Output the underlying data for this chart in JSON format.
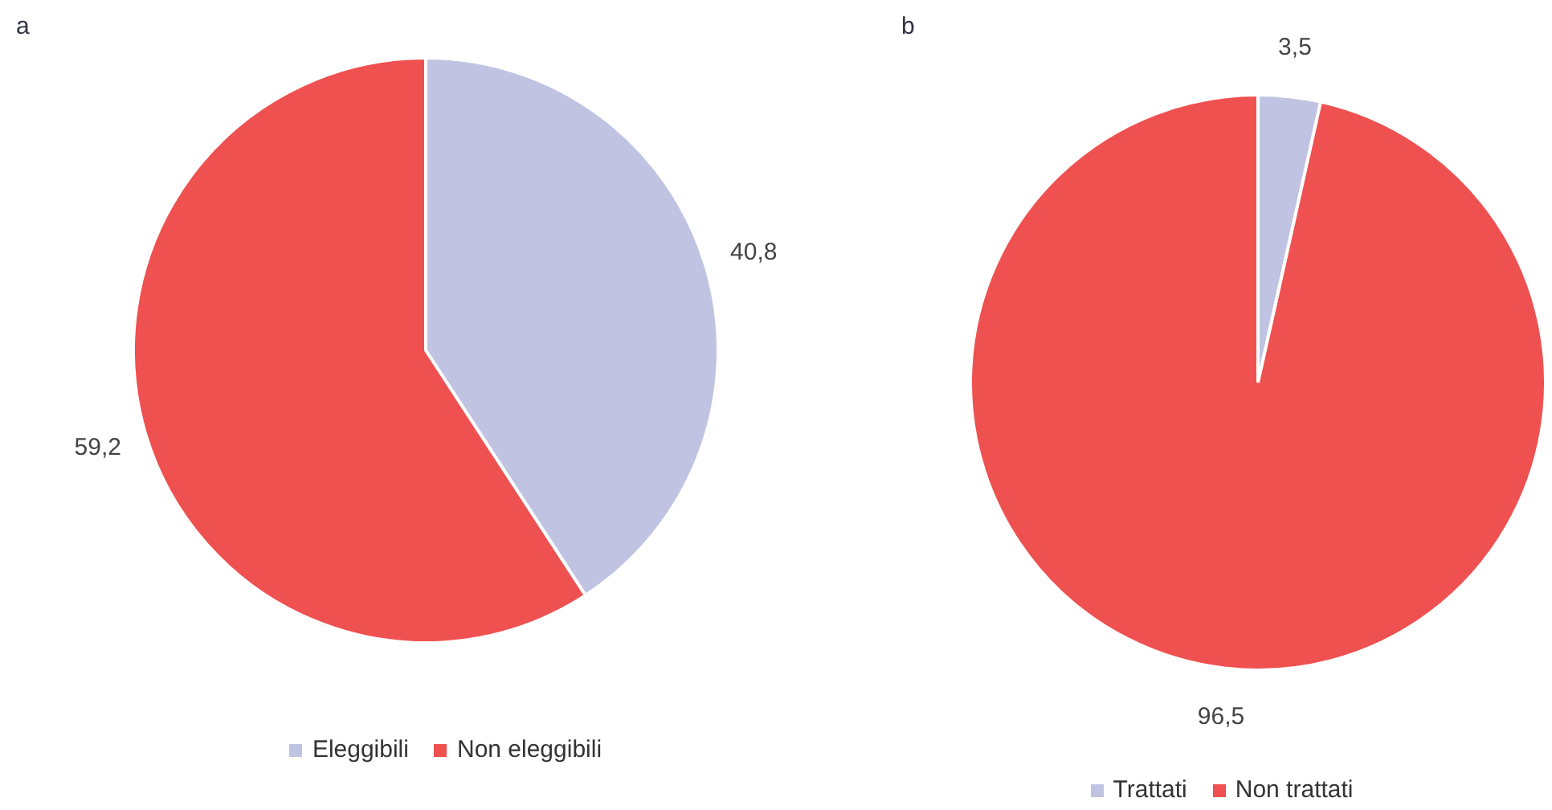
{
  "chart_data": [
    {
      "type": "pie",
      "title": "a",
      "categories": [
        "Eleggibili",
        "Non eleggibili"
      ],
      "values": [
        40.8,
        59.2
      ],
      "colors": [
        "#c0c4e2",
        "#ef5050"
      ],
      "value_labels": [
        "40,8",
        "59,2"
      ],
      "legend": "bottom"
    },
    {
      "type": "pie",
      "title": "b",
      "categories": [
        "Trattati",
        "Non trattati"
      ],
      "values": [
        3.5,
        96.5
      ],
      "colors": [
        "#c0c4e2",
        "#ef5050"
      ],
      "value_labels": [
        "3,5",
        "96,5"
      ],
      "legend": "bottom"
    }
  ]
}
